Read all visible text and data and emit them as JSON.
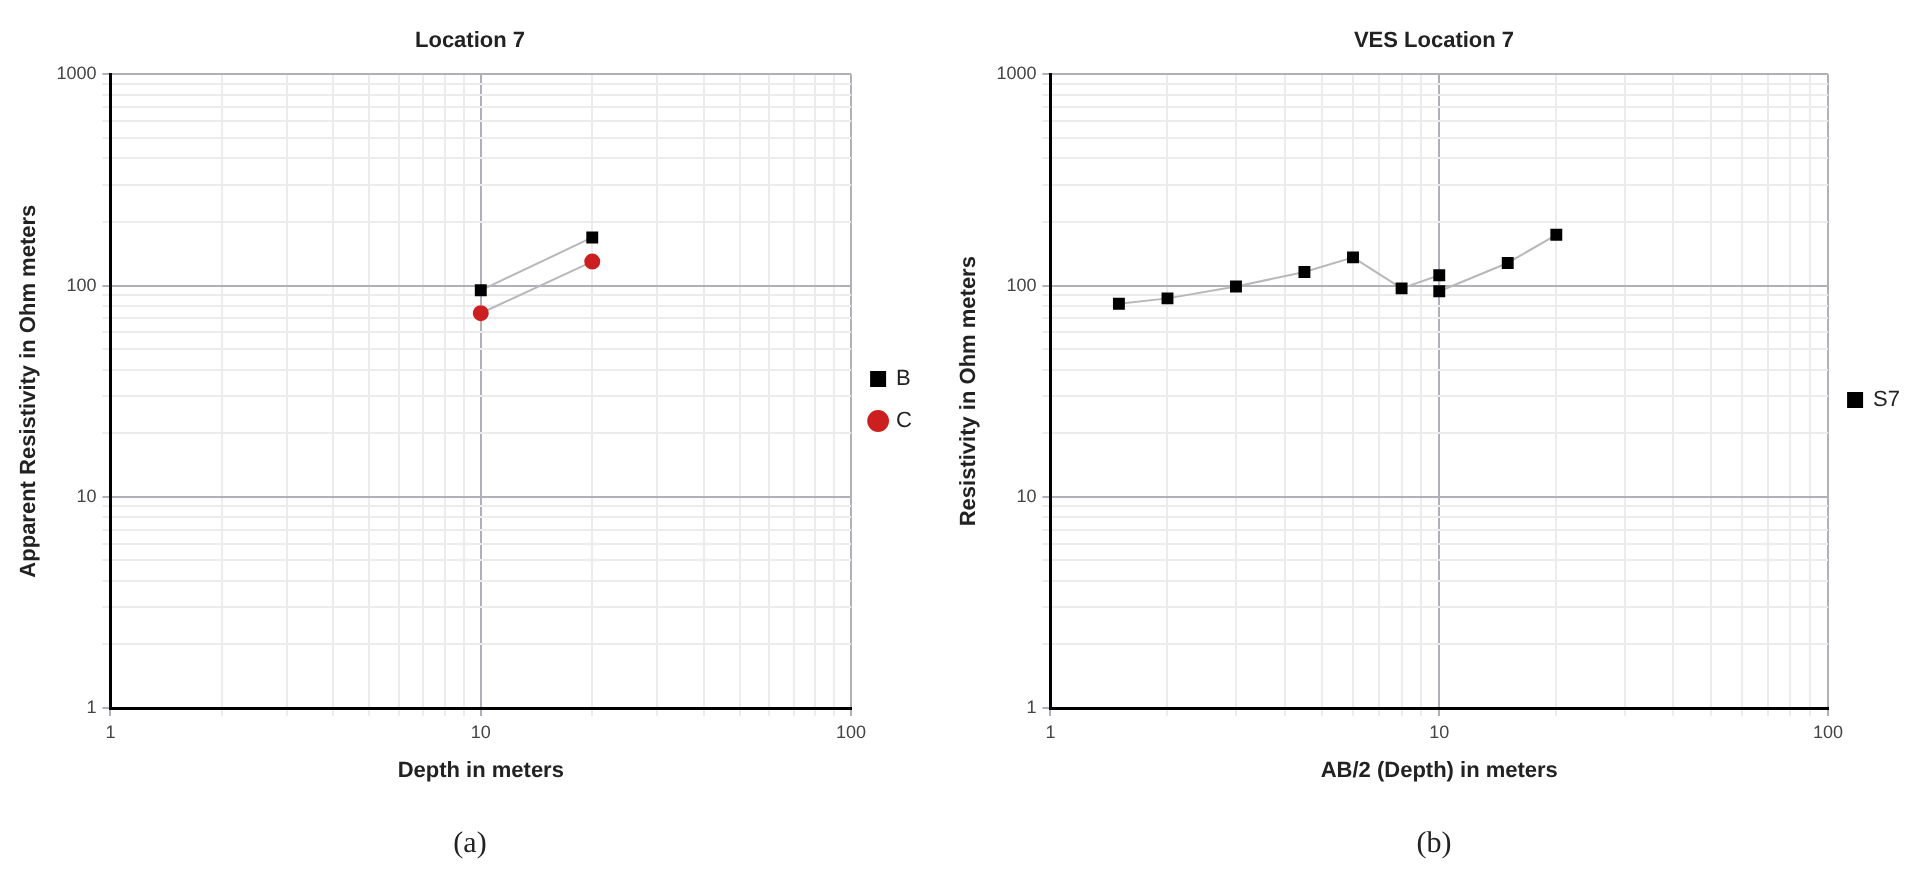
{
  "chart_data": [
    {
      "type": "line",
      "title": "Location 7",
      "xlabel": "Depth in meters",
      "ylabel": "Apparent Resistivity in Ohm meters",
      "log": "xy",
      "grid": true,
      "legend": "right",
      "line_style": "solid",
      "xlim": [
        1,
        100
      ],
      "ylim": [
        1,
        1000
      ],
      "xticks": [
        1,
        {
          "value": 2,
          "label": null
        },
        {
          "value": 3,
          "label": null
        },
        {
          "value": 4,
          "label": null
        },
        {
          "value": 5,
          "label": null
        },
        {
          "value": 6,
          "label": null
        },
        {
          "value": 7,
          "label": null
        },
        {
          "value": 8,
          "label": null
        },
        {
          "value": 9,
          "label": null
        },
        10,
        {
          "value": 20,
          "label": null
        },
        {
          "value": 30,
          "label": null
        },
        {
          "value": 40,
          "label": null
        },
        {
          "value": 50,
          "label": null
        },
        {
          "value": 60,
          "label": null
        },
        {
          "value": 70,
          "label": null
        },
        {
          "value": 80,
          "label": null
        },
        {
          "value": 90,
          "label": null
        },
        100
      ],
      "yticks": [
        1,
        {
          "value": 2,
          "label": null
        },
        {
          "value": 3,
          "label": null
        },
        {
          "value": 4,
          "label": null
        },
        {
          "value": 5,
          "label": null
        },
        {
          "value": 6,
          "label": null
        },
        {
          "value": 7,
          "label": null
        },
        {
          "value": 8,
          "label": null
        },
        {
          "value": 9,
          "label": null
        },
        10,
        {
          "value": 20,
          "label": null
        },
        {
          "value": 30,
          "label": null
        },
        {
          "value": 40,
          "label": null
        },
        {
          "value": 50,
          "label": null
        },
        {
          "value": 60,
          "label": null
        },
        {
          "value": 70,
          "label": null
        },
        {
          "value": 80,
          "label": null
        },
        {
          "value": 90,
          "label": null
        },
        100,
        {
          "value": 200,
          "label": null
        },
        {
          "value": 300,
          "label": null
        },
        {
          "value": 400,
          "label": null
        },
        {
          "value": 500,
          "label": null
        },
        {
          "value": 600,
          "label": null
        },
        {
          "value": 700,
          "label": null
        },
        {
          "value": 800,
          "label": null
        },
        {
          "value": 900,
          "label": null
        },
        1000
      ],
      "annotations": [
        "(a)"
      ],
      "series": [
        {
          "name": "B",
          "color": "#000000",
          "marker": "square",
          "x": [
            10,
            20
          ],
          "values": [
            95,
            169
          ]
        },
        {
          "name": "C",
          "color": "#cc2020",
          "marker": "circle",
          "x": [
            10,
            20
          ],
          "values": [
            74,
            130
          ]
        }
      ]
    },
    {
      "type": "line",
      "title": "VES Location 7",
      "xlabel": "AB/2 (Depth) in meters",
      "ylabel": "Resistivity in Ohm meters",
      "log": "xy",
      "grid": true,
      "legend": "right",
      "line_style": "solid",
      "marker": "square",
      "xlim": [
        1,
        100
      ],
      "ylim": [
        1,
        1000
      ],
      "xticks": [
        1,
        {
          "value": 2,
          "label": null
        },
        {
          "value": 3,
          "label": null
        },
        {
          "value": 4,
          "label": null
        },
        {
          "value": 5,
          "label": null
        },
        {
          "value": 6,
          "label": null
        },
        {
          "value": 7,
          "label": null
        },
        {
          "value": 8,
          "label": null
        },
        {
          "value": 9,
          "label": null
        },
        10,
        {
          "value": 20,
          "label": null
        },
        {
          "value": 30,
          "label": null
        },
        {
          "value": 40,
          "label": null
        },
        {
          "value": 50,
          "label": null
        },
        {
          "value": 60,
          "label": null
        },
        {
          "value": 70,
          "label": null
        },
        {
          "value": 80,
          "label": null
        },
        {
          "value": 90,
          "label": null
        },
        100
      ],
      "yticks": [
        1,
        {
          "value": 2,
          "label": null
        },
        {
          "value": 3,
          "label": null
        },
        {
          "value": 4,
          "label": null
        },
        {
          "value": 5,
          "label": null
        },
        {
          "value": 6,
          "label": null
        },
        {
          "value": 7,
          "label": null
        },
        {
          "value": 8,
          "label": null
        },
        {
          "value": 9,
          "label": null
        },
        10,
        {
          "value": 20,
          "label": null
        },
        {
          "value": 30,
          "label": null
        },
        {
          "value": 40,
          "label": null
        },
        {
          "value": 50,
          "label": null
        },
        {
          "value": 60,
          "label": null
        },
        {
          "value": 70,
          "label": null
        },
        {
          "value": 80,
          "label": null
        },
        {
          "value": 90,
          "label": null
        },
        100,
        {
          "value": 200,
          "label": null
        },
        {
          "value": 300,
          "label": null
        },
        {
          "value": 400,
          "label": null
        },
        {
          "value": 500,
          "label": null
        },
        {
          "value": 600,
          "label": null
        },
        {
          "value": 700,
          "label": null
        },
        {
          "value": 800,
          "label": null
        },
        {
          "value": 900,
          "label": null
        },
        1000
      ],
      "annotations": [
        "(b)"
      ],
      "series": [
        {
          "name": "S7",
          "color": "#000000",
          "x": [
            1.5,
            2,
            3,
            4.5,
            6,
            8,
            10,
            10,
            15,
            20
          ],
          "values": [
            82,
            87,
            99,
            116,
            136,
            97,
            112,
            94,
            128,
            174
          ]
        }
      ]
    }
  ]
}
